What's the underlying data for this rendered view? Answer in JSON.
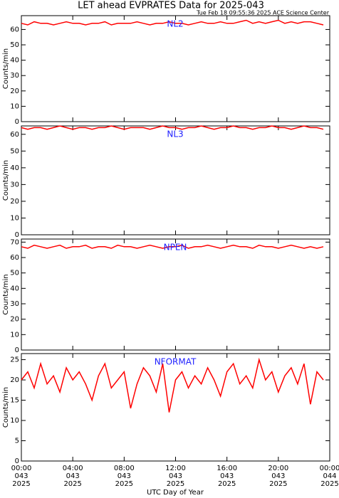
{
  "title": "LET ahead EVPRATES Data for 2025-043",
  "subtitle": "Tue Feb 18 09:55:36 2025 ACE Science Center",
  "xlabel": "UTC Day of Year",
  "chart_data": [
    {
      "type": "line",
      "label": "NL2",
      "ylabel": "Counts/min",
      "color": "#ff0000",
      "xlim": [
        0,
        24
      ],
      "ylim": [
        0,
        69
      ],
      "yticks": [
        0,
        10,
        20,
        30,
        40,
        50,
        60
      ],
      "x": [
        0,
        0.5,
        1,
        1.5,
        2,
        2.5,
        3,
        3.5,
        4,
        4.5,
        5,
        5.5,
        6,
        6.5,
        7,
        7.5,
        8,
        8.5,
        9,
        9.5,
        10,
        10.5,
        11,
        11.5,
        12,
        12.5,
        13,
        13.5,
        14,
        14.5,
        15,
        15.5,
        16,
        16.5,
        17,
        17.5,
        18,
        18.5,
        19,
        19.5,
        20,
        20.5,
        21,
        21.5,
        22,
        22.5,
        23,
        23.5
      ],
      "values": [
        64,
        63,
        65,
        64,
        64,
        63,
        64,
        65,
        64,
        64,
        63,
        64,
        64,
        65,
        63,
        64,
        64,
        64,
        65,
        64,
        63,
        64,
        64,
        65,
        64,
        64,
        63,
        64,
        65,
        64,
        64,
        65,
        64,
        64,
        65,
        66,
        64,
        65,
        64,
        65,
        66,
        64,
        65,
        64,
        65,
        65,
        64,
        63
      ]
    },
    {
      "type": "line",
      "label": "NL3",
      "ylabel": "Counts/min",
      "color": "#ff0000",
      "xlim": [
        0,
        24
      ],
      "ylim": [
        0,
        65
      ],
      "yticks": [
        0,
        10,
        20,
        30,
        40,
        50,
        60
      ],
      "x": [
        0,
        0.5,
        1,
        1.5,
        2,
        2.5,
        3,
        3.5,
        4,
        4.5,
        5,
        5.5,
        6,
        6.5,
        7,
        7.5,
        8,
        8.5,
        9,
        9.5,
        10,
        10.5,
        11,
        11.5,
        12,
        12.5,
        13,
        13.5,
        14,
        14.5,
        15,
        15.5,
        16,
        16.5,
        17,
        17.5,
        18,
        18.5,
        19,
        19.5,
        20,
        20.5,
        21,
        21.5,
        22,
        22.5,
        23,
        23.5
      ],
      "values": [
        64,
        63,
        64,
        64,
        63,
        64,
        65,
        64,
        63,
        64,
        64,
        63,
        64,
        64,
        65,
        64,
        63,
        64,
        64,
        64,
        63,
        64,
        65,
        64,
        64,
        63,
        64,
        64,
        65,
        64,
        63,
        64,
        64,
        65,
        64,
        64,
        63,
        64,
        64,
        65,
        64,
        64,
        63,
        64,
        65,
        64,
        64,
        63
      ]
    },
    {
      "type": "line",
      "label": "NPEN",
      "ylabel": "Counts/min",
      "color": "#ff0000",
      "xlim": [
        0,
        24
      ],
      "ylim": [
        0,
        72
      ],
      "yticks": [
        0,
        10,
        20,
        30,
        40,
        50,
        60,
        70
      ],
      "x": [
        0,
        0.5,
        1,
        1.5,
        2,
        2.5,
        3,
        3.5,
        4,
        4.5,
        5,
        5.5,
        6,
        6.5,
        7,
        7.5,
        8,
        8.5,
        9,
        9.5,
        10,
        10.5,
        11,
        11.5,
        12,
        12.5,
        13,
        13.5,
        14,
        14.5,
        15,
        15.5,
        16,
        16.5,
        17,
        17.5,
        18,
        18.5,
        19,
        19.5,
        20,
        20.5,
        21,
        21.5,
        22,
        22.5,
        23,
        23.5
      ],
      "values": [
        67,
        66,
        68,
        67,
        66,
        67,
        68,
        66,
        67,
        67,
        68,
        66,
        67,
        67,
        66,
        68,
        67,
        67,
        66,
        67,
        68,
        67,
        66,
        67,
        67,
        68,
        66,
        67,
        67,
        68,
        67,
        66,
        67,
        68,
        67,
        67,
        66,
        68,
        67,
        67,
        66,
        67,
        68,
        67,
        66,
        67,
        66,
        67
      ]
    },
    {
      "type": "line",
      "label": "NFORMAT",
      "ylabel": "Counts/min",
      "color": "#ff0000",
      "xlim": [
        0,
        24
      ],
      "ylim": [
        0,
        26.5
      ],
      "yticks": [
        0,
        5,
        10,
        15,
        20,
        25
      ],
      "xticks": [
        {
          "value": 0,
          "label": "00:00",
          "day": "043",
          "year": "2025"
        },
        {
          "value": 4,
          "label": "04:00",
          "day": "043",
          "year": "2025"
        },
        {
          "value": 8,
          "label": "08:00",
          "day": "043",
          "year": "2025"
        },
        {
          "value": 12,
          "label": "12:00",
          "day": "043",
          "year": "2025"
        },
        {
          "value": 16,
          "label": "16:00",
          "day": "043",
          "year": "2025"
        },
        {
          "value": 20,
          "label": "20:00",
          "day": "043",
          "year": "2025"
        },
        {
          "value": 24,
          "label": "00:00",
          "day": "044",
          "year": "2025"
        }
      ],
      "x": [
        0,
        0.5,
        1,
        1.5,
        2,
        2.5,
        3,
        3.5,
        4,
        4.5,
        5,
        5.5,
        6,
        6.5,
        7,
        7.5,
        8,
        8.5,
        9,
        9.5,
        10,
        10.5,
        11,
        11.5,
        12,
        12.5,
        13,
        13.5,
        14,
        14.5,
        15,
        15.5,
        16,
        16.5,
        17,
        17.5,
        18,
        18.5,
        19,
        19.5,
        20,
        20.5,
        21,
        21.5,
        22,
        22.5,
        23,
        23.5
      ],
      "values": [
        20,
        22,
        18,
        24,
        19,
        21,
        17,
        23,
        20,
        22,
        19,
        15,
        21,
        24,
        18,
        20,
        22,
        13,
        19,
        23,
        21,
        17,
        24,
        12,
        20,
        22,
        18,
        21,
        19,
        23,
        20,
        16,
        22,
        24,
        19,
        21,
        18,
        25,
        20,
        22,
        17,
        21,
        23,
        19,
        24,
        14,
        22,
        20
      ]
    }
  ]
}
